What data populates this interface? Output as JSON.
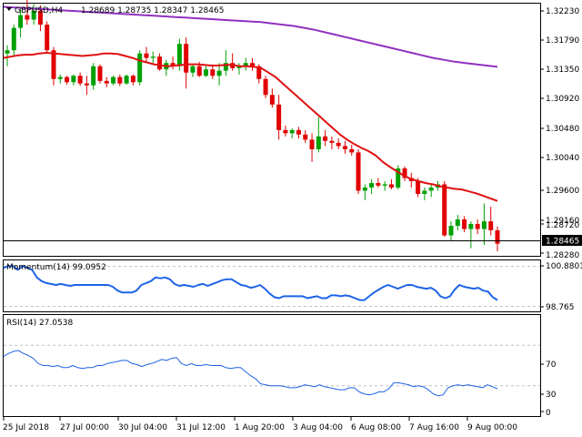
{
  "chart_header": {
    "symbol_label": "GBPUSD,H4",
    "ohlc_text": "1.28689 1.28735 1.28347 1.28465"
  },
  "momentum_panel": {
    "label": "Momentum(14) 99.0952",
    "price_labels": [
      "100.8801",
      "98.765"
    ]
  },
  "rsi_panel": {
    "label": "RSI(14) 27.0538",
    "price_labels": [
      "70",
      "30",
      "0"
    ]
  },
  "price_axis": {
    "labels": [
      "1.32230",
      "1.31790",
      "1.31350",
      "1.30920",
      "1.30480",
      "1.30040",
      "1.29600",
      "1.29160",
      "1.28720",
      "1.28280"
    ],
    "current_price": "1.28465"
  },
  "time_axis": {
    "labels": [
      "25 Jul 2018",
      "27 Jul 00:00",
      "30 Jul 04:00",
      "31 Jul 12:00",
      "1 Aug 20:00",
      "3 Aug 04:00",
      "6 Aug 08:00",
      "7 Aug 16:00",
      "9 Aug 00:00"
    ]
  },
  "colors": {
    "bull": "#00A000",
    "bear": "#E00000",
    "ma_fast": "#E01010",
    "ma_slow": "#9030C0",
    "indicator": "#1E64E6",
    "grid": "#BFBFBF"
  },
  "chart_data": [
    {
      "type": "candlestick",
      "title": "GBPUSD,H4",
      "ylim": [
        1.2828,
        1.3223
      ],
      "candles": [
        [
          1.3145,
          1.3158,
          1.3125,
          1.315
        ],
        [
          1.315,
          1.319,
          1.314,
          1.3185
        ],
        [
          1.3185,
          1.3215,
          1.317,
          1.3205
        ],
        [
          1.3205,
          1.323,
          1.319,
          1.3198
        ],
        [
          1.3198,
          1.3222,
          1.319,
          1.3212
        ],
        [
          1.3212,
          1.322,
          1.318,
          1.319
        ],
        [
          1.319,
          1.3195,
          1.3145,
          1.315
        ],
        [
          1.315,
          1.3155,
          1.3095,
          1.3105
        ],
        [
          1.3105,
          1.3112,
          1.3098,
          1.3108
        ],
        [
          1.3108,
          1.311,
          1.3096,
          1.31
        ],
        [
          1.31,
          1.3112,
          1.3095,
          1.311
        ],
        [
          1.311,
          1.3115,
          1.3094,
          1.3098
        ],
        [
          1.3098,
          1.311,
          1.308,
          1.3095
        ],
        [
          1.3095,
          1.313,
          1.3088,
          1.3125
        ],
        [
          1.3125,
          1.3128,
          1.3098,
          1.3102
        ],
        [
          1.3102,
          1.3108,
          1.3092,
          1.3098
        ],
        [
          1.3098,
          1.311,
          1.3095,
          1.3108
        ],
        [
          1.3108,
          1.3112,
          1.3094,
          1.3098
        ],
        [
          1.3098,
          1.3112,
          1.3096,
          1.311
        ],
        [
          1.311,
          1.3112,
          1.3095,
          1.31
        ],
        [
          1.31,
          1.315,
          1.3095,
          1.3145
        ],
        [
          1.3145,
          1.3155,
          1.313,
          1.3138
        ],
        [
          1.3138,
          1.3148,
          1.313,
          1.314
        ],
        [
          1.314,
          1.3145,
          1.3118,
          1.312
        ],
        [
          1.312,
          1.3135,
          1.311,
          1.313
        ],
        [
          1.313,
          1.314,
          1.312,
          1.3125
        ],
        [
          1.3125,
          1.3168,
          1.3118,
          1.316
        ],
        [
          1.316,
          1.317,
          1.309,
          1.3115
        ],
        [
          1.3115,
          1.3128,
          1.3108,
          1.3125
        ],
        [
          1.3125,
          1.3132,
          1.3108,
          1.311
        ],
        [
          1.311,
          1.3125,
          1.3108,
          1.312
        ],
        [
          1.312,
          1.3128,
          1.3105,
          1.311
        ],
        [
          1.311,
          1.313,
          1.3095,
          1.3118
        ],
        [
          1.3118,
          1.315,
          1.311,
          1.313
        ],
        [
          1.313,
          1.3145,
          1.3118,
          1.3122
        ],
        [
          1.3122,
          1.313,
          1.3112,
          1.3125
        ],
        [
          1.3125,
          1.3138,
          1.3118,
          1.313
        ],
        [
          1.313,
          1.3138,
          1.3118,
          1.3125
        ],
        [
          1.3125,
          1.3128,
          1.3098,
          1.3105
        ],
        [
          1.3105,
          1.311,
          1.3075,
          1.308
        ],
        [
          1.308,
          1.309,
          1.306,
          1.3065
        ],
        [
          1.3065,
          1.308,
          1.301,
          1.3025
        ],
        [
          1.3025,
          1.3032,
          1.3015,
          1.302
        ],
        [
          1.302,
          1.3028,
          1.3012,
          1.3025
        ],
        [
          1.3025,
          1.303,
          1.3012,
          1.3018
        ],
        [
          1.3018,
          1.3025,
          1.3005,
          1.301
        ],
        [
          1.301,
          1.302,
          1.2975,
          1.2995
        ],
        [
          1.2995,
          1.3045,
          1.299,
          1.3015
        ],
        [
          1.3015,
          1.3025,
          1.3,
          1.3008
        ],
        [
          1.3008,
          1.3015,
          1.2995,
          1.3005
        ],
        [
          1.3005,
          1.3012,
          1.2995,
          1.3
        ],
        [
          1.3,
          1.3008,
          1.2988,
          1.2995
        ],
        [
          1.2995,
          1.3002,
          1.2985,
          1.299
        ],
        [
          1.299,
          1.2995,
          1.2925,
          1.293
        ],
        [
          1.293,
          1.294,
          1.2915,
          1.2935
        ],
        [
          1.2935,
          1.2948,
          1.2925,
          1.2942
        ],
        [
          1.2942,
          1.295,
          1.2935,
          1.2938
        ],
        [
          1.2938,
          1.2945,
          1.293,
          1.294
        ],
        [
          1.294,
          1.2948,
          1.2932,
          1.2935
        ],
        [
          1.2935,
          1.297,
          1.2932,
          1.2965
        ],
        [
          1.2965,
          1.2968,
          1.2945,
          1.295
        ],
        [
          1.295,
          1.2958,
          1.2935,
          1.2945
        ],
        [
          1.2945,
          1.295,
          1.292,
          1.2925
        ],
        [
          1.2925,
          1.2935,
          1.2915,
          1.293
        ],
        [
          1.293,
          1.294,
          1.292,
          1.2935
        ],
        [
          1.2935,
          1.2945,
          1.293,
          1.294
        ],
        [
          1.294,
          1.2945,
          1.2858,
          1.286
        ],
        [
          1.286,
          1.2882,
          1.2852,
          1.2875
        ],
        [
          1.2875,
          1.2892,
          1.2868,
          1.2885
        ],
        [
          1.2885,
          1.289,
          1.2865,
          1.287
        ],
        [
          1.287,
          1.2882,
          1.284,
          1.2878
        ],
        [
          1.2878,
          1.2885,
          1.2862,
          1.287
        ],
        [
          1.287,
          1.291,
          1.2845,
          1.2882
        ],
        [
          1.2882,
          1.2905,
          1.286,
          1.2868
        ],
        [
          1.2868,
          1.2874,
          1.2835,
          1.2847
        ]
      ],
      "ma_fast": [
        1.3138,
        1.314,
        1.3142,
        1.3143,
        1.3143,
        1.3145,
        1.3146,
        1.3145,
        1.3144,
        1.3143,
        1.3142,
        1.3141,
        1.3142,
        1.3143,
        1.3145,
        1.3145,
        1.3144,
        1.3141,
        1.3138,
        1.3134,
        1.3131,
        1.3128,
        1.3126,
        1.3125,
        1.3126,
        1.3127,
        1.3128,
        1.3128,
        1.3127,
        1.3126,
        1.3126,
        1.3127,
        1.3127,
        1.3125,
        1.3125,
        1.3124,
        1.3122,
        1.3115,
        1.3108,
        1.3098,
        1.3088,
        1.3078,
        1.3068,
        1.3058,
        1.3048,
        1.3038,
        1.3028,
        1.3018,
        1.301,
        1.3003,
        1.2997,
        1.2992,
        1.2985,
        1.2975,
        1.2967,
        1.296,
        1.2953,
        1.2948,
        1.2945,
        1.2942,
        1.294,
        1.2937,
        1.2935,
        1.2933,
        1.2932,
        1.2929,
        1.2926,
        1.2922,
        1.2918,
        1.2914
      ],
      "ma_slow": [
        1.3218,
        1.3217,
        1.3216,
        1.3215,
        1.3214,
        1.3213,
        1.3212,
        1.3211,
        1.321,
        1.3209,
        1.3208,
        1.3207,
        1.3206,
        1.3205,
        1.3204,
        1.3203,
        1.3202,
        1.3201,
        1.32,
        1.3199,
        1.3198,
        1.3197,
        1.3196,
        1.3195,
        1.3194,
        1.3192,
        1.319,
        1.3188,
        1.3185,
        1.3182,
        1.3178,
        1.3174,
        1.317,
        1.3166,
        1.3162,
        1.3158,
        1.3154,
        1.315,
        1.3146,
        1.3142,
        1.3138,
        1.3135,
        1.3132,
        1.313,
        1.3128,
        1.3126,
        1.3124
      ],
      "current_price": 1.28465
    },
    {
      "type": "line",
      "title": "Momentum(14) 99.0952",
      "ylim": [
        98.5,
        101.2
      ],
      "levels": [
        100.8801,
        98.765
      ],
      "values": [
        100.8,
        100.9,
        100.9,
        100.7,
        100.9,
        100.8,
        100.7,
        100.3,
        100.1,
        100.0,
        99.95,
        99.9,
        99.95,
        99.9,
        99.85,
        99.9,
        99.9,
        99.9,
        99.9,
        99.9,
        99.9,
        99.9,
        99.9,
        99.8,
        99.6,
        99.5,
        99.5,
        99.5,
        99.6,
        99.9,
        100.0,
        100.1,
        100.3,
        100.25,
        100.3,
        100.2,
        99.95,
        99.85,
        99.9,
        99.85,
        99.8,
        99.9,
        99.95,
        99.85,
        99.95,
        100.05,
        100.15,
        100.2,
        100.2,
        100.05,
        99.9,
        99.85,
        99.75,
        99.8,
        99.9,
        99.7,
        99.45,
        99.25,
        99.2,
        99.3,
        99.3,
        99.3,
        99.3,
        99.3,
        99.2,
        99.25,
        99.3,
        99.2,
        99.2,
        99.35,
        99.35,
        99.3,
        99.35,
        99.3,
        99.2,
        99.1,
        99.1,
        99.3,
        99.5,
        99.65,
        99.8,
        99.9,
        99.8,
        99.7,
        99.8,
        99.9,
        99.9,
        99.8,
        99.75,
        99.7,
        99.75,
        99.6,
        99.3,
        99.2,
        99.3,
        99.65,
        99.9,
        99.8,
        99.75,
        99.7,
        99.75,
        99.6,
        99.55,
        99.25,
        99.1
      ]
    },
    {
      "type": "line",
      "title": "RSI(14) 27.0538",
      "ylim": [
        0,
        100
      ],
      "levels": [
        70,
        30
      ],
      "values": [
        59,
        62,
        64,
        65,
        62,
        60,
        57,
        52,
        50,
        50,
        49,
        50,
        48,
        48,
        50,
        48,
        47,
        48,
        48,
        50,
        50,
        52,
        53,
        54,
        55,
        55,
        52,
        51,
        49,
        51,
        52,
        54,
        56,
        55,
        57,
        58,
        52,
        50,
        52,
        50,
        50,
        51,
        50,
        50,
        50,
        48,
        47,
        48,
        48,
        44,
        40,
        37,
        32,
        31,
        30,
        30,
        30,
        29,
        28,
        28,
        29,
        31,
        30,
        29,
        31,
        29,
        28,
        27,
        26,
        26,
        28,
        28,
        24,
        22,
        21,
        22,
        24,
        24,
        27,
        33,
        33,
        32,
        31,
        29,
        30,
        29,
        26,
        22,
        20,
        21,
        28,
        30,
        31,
        30,
        31,
        30,
        29,
        28,
        31,
        29,
        27
      ]
    }
  ]
}
